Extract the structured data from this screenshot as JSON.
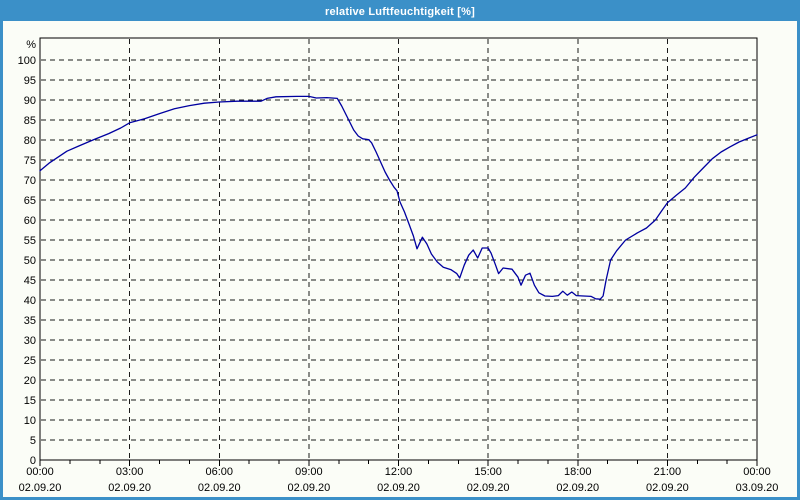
{
  "window": {
    "title": "relative Luftfeuchtigkeit [%]",
    "title_bar_color": "#3b90c8",
    "border_color": "#3b90c8",
    "background_color": "#fbfdf7"
  },
  "chart_data": {
    "type": "line",
    "title": "relative Luftfeuchtigkeit [%]",
    "ylabel": "%",
    "xlabel": "",
    "ylim": [
      0,
      105.5
    ],
    "xlim_hours": [
      0,
      24
    ],
    "grid": "dashed",
    "legend": "none",
    "line_color": "#0000a0",
    "grid_color": "#1a1a1a",
    "y_unit_label": "%",
    "y_ticks": [
      0,
      5,
      10,
      15,
      20,
      25,
      30,
      35,
      40,
      45,
      50,
      55,
      60,
      65,
      70,
      75,
      80,
      85,
      90,
      95,
      100
    ],
    "x_ticks": [
      {
        "hour": 0,
        "time": "00:00",
        "date": "02.09.20"
      },
      {
        "hour": 3,
        "time": "03:00",
        "date": "02.09.20"
      },
      {
        "hour": 6,
        "time": "06:00",
        "date": "02.09.20"
      },
      {
        "hour": 9,
        "time": "09:00",
        "date": "02.09.20"
      },
      {
        "hour": 12,
        "time": "12:00",
        "date": "02.09.20"
      },
      {
        "hour": 15,
        "time": "15:00",
        "date": "02.09.20"
      },
      {
        "hour": 18,
        "time": "18:00",
        "date": "02.09.20"
      },
      {
        "hour": 21,
        "time": "21:00",
        "date": "02.09.20"
      },
      {
        "hour": 24,
        "time": "00:00",
        "date": "03.09.20"
      }
    ],
    "series": [
      {
        "name": "relative Luftfeuchtigkeit",
        "points": [
          [
            0,
            72.3
          ],
          [
            0.3,
            74.2
          ],
          [
            0.9,
            77.2
          ],
          [
            1.3,
            78.5
          ],
          [
            1.8,
            80.1
          ],
          [
            2.3,
            81.6
          ],
          [
            2.7,
            83
          ],
          [
            3,
            84.3
          ],
          [
            3.5,
            85.3
          ],
          [
            4,
            86.6
          ],
          [
            4.5,
            87.8
          ],
          [
            5,
            88.6
          ],
          [
            5.5,
            89.2
          ],
          [
            6,
            89.5
          ],
          [
            6.6,
            89.7
          ],
          [
            7.4,
            89.7
          ],
          [
            7.6,
            90.4
          ],
          [
            7.9,
            90.8
          ],
          [
            8.6,
            90.9
          ],
          [
            9,
            90.9
          ],
          [
            9.25,
            90.5
          ],
          [
            9.6,
            90.6
          ],
          [
            9.95,
            90.4
          ],
          [
            10.1,
            88.5
          ],
          [
            10.3,
            85.5
          ],
          [
            10.5,
            82.5
          ],
          [
            10.65,
            81
          ],
          [
            10.8,
            80.3
          ],
          [
            11,
            80.1
          ],
          [
            11.1,
            79.3
          ],
          [
            11.25,
            77
          ],
          [
            11.4,
            74.5
          ],
          [
            11.55,
            72
          ],
          [
            11.7,
            70
          ],
          [
            11.85,
            68.2
          ],
          [
            11.95,
            67.3
          ],
          [
            12.05,
            64.5
          ],
          [
            12.2,
            62
          ],
          [
            12.35,
            59
          ],
          [
            12.5,
            56
          ],
          [
            12.62,
            52.8
          ],
          [
            12.8,
            55.7
          ],
          [
            12.95,
            54
          ],
          [
            13.1,
            51.5
          ],
          [
            13.3,
            49.5
          ],
          [
            13.5,
            48.2
          ],
          [
            13.75,
            47.6
          ],
          [
            13.95,
            46.6
          ],
          [
            14.05,
            45.5
          ],
          [
            14.2,
            48.7
          ],
          [
            14.35,
            51.2
          ],
          [
            14.5,
            52.5
          ],
          [
            14.65,
            50.5
          ],
          [
            14.8,
            53
          ],
          [
            15,
            53
          ],
          [
            15.1,
            51.7
          ],
          [
            15.25,
            48.7
          ],
          [
            15.35,
            46.6
          ],
          [
            15.5,
            48
          ],
          [
            15.8,
            47.7
          ],
          [
            16,
            45.7
          ],
          [
            16.1,
            43.7
          ],
          [
            16.25,
            46.2
          ],
          [
            16.4,
            46.7
          ],
          [
            16.55,
            43.7
          ],
          [
            16.7,
            41.8
          ],
          [
            16.9,
            41
          ],
          [
            17.15,
            40.9
          ],
          [
            17.35,
            41.1
          ],
          [
            17.5,
            42.2
          ],
          [
            17.65,
            41.2
          ],
          [
            17.8,
            42
          ],
          [
            17.95,
            41.1
          ],
          [
            18.2,
            41
          ],
          [
            18.45,
            40.9
          ],
          [
            18.6,
            40.3
          ],
          [
            18.75,
            40.2
          ],
          [
            18.85,
            41
          ],
          [
            18.95,
            45
          ],
          [
            19.1,
            50
          ],
          [
            19.3,
            52.3
          ],
          [
            19.6,
            55
          ],
          [
            20,
            56.8
          ],
          [
            20.3,
            58
          ],
          [
            20.6,
            60
          ],
          [
            20.8,
            62.2
          ],
          [
            21,
            64.3
          ],
          [
            21.3,
            66.2
          ],
          [
            21.6,
            68
          ],
          [
            21.9,
            70.7
          ],
          [
            22.2,
            73
          ],
          [
            22.5,
            75.3
          ],
          [
            22.8,
            77
          ],
          [
            23.1,
            78.3
          ],
          [
            23.4,
            79.5
          ],
          [
            23.7,
            80.4
          ],
          [
            24,
            81.3
          ]
        ]
      }
    ]
  }
}
